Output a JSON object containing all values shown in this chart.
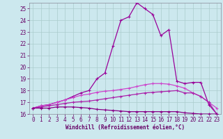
{
  "title": "",
  "xlabel": "Windchill (Refroidissement éolien,°C)",
  "bg_color": "#cce8ee",
  "grid_color": "#aacccc",
  "xlim": [
    -0.5,
    23.5
  ],
  "ylim": [
    16,
    25.5
  ],
  "xticks": [
    0,
    1,
    2,
    3,
    4,
    5,
    6,
    7,
    8,
    9,
    10,
    11,
    12,
    13,
    14,
    15,
    16,
    17,
    18,
    19,
    20,
    21,
    22,
    23
  ],
  "yticks": [
    16,
    17,
    18,
    19,
    20,
    21,
    22,
    23,
    24,
    25
  ],
  "series1_x": [
    0,
    1,
    2,
    3,
    4,
    5,
    6,
    7,
    8,
    9,
    10,
    11,
    12,
    13,
    14,
    15,
    16,
    17,
    18,
    19,
    20,
    21,
    22,
    23
  ],
  "series1_y": [
    16.5,
    16.7,
    16.8,
    17.0,
    17.2,
    17.5,
    17.8,
    18.0,
    19.0,
    19.5,
    21.8,
    24.0,
    24.3,
    25.5,
    25.0,
    24.5,
    22.7,
    23.2,
    18.8,
    18.6,
    18.7,
    18.7,
    16.8,
    16.0
  ],
  "series1_color": "#990099",
  "series2_x": [
    0,
    1,
    2,
    3,
    4,
    5,
    6,
    7,
    8,
    9,
    10,
    11,
    12,
    13,
    14,
    15,
    16,
    17,
    18,
    19,
    20,
    21,
    22,
    23
  ],
  "series2_y": [
    16.5,
    16.7,
    16.8,
    17.0,
    17.2,
    17.4,
    17.6,
    17.7,
    17.85,
    17.95,
    18.0,
    18.1,
    18.2,
    18.35,
    18.5,
    18.6,
    18.6,
    18.55,
    18.4,
    18.2,
    17.8,
    17.5,
    17.0,
    16.5
  ],
  "series2_color": "#cc44cc",
  "series3_x": [
    0,
    1,
    2,
    3,
    4,
    5,
    6,
    7,
    8,
    9,
    10,
    11,
    12,
    13,
    14,
    15,
    16,
    17,
    18,
    19,
    20,
    21,
    22,
    23
  ],
  "series3_y": [
    16.5,
    16.6,
    16.7,
    16.8,
    16.9,
    17.0,
    17.05,
    17.1,
    17.2,
    17.3,
    17.4,
    17.5,
    17.6,
    17.7,
    17.8,
    17.85,
    17.9,
    17.95,
    18.0,
    17.8,
    17.8,
    17.5,
    17.0,
    16.0
  ],
  "series3_color": "#aa22aa",
  "series4_x": [
    0,
    1,
    2,
    3,
    4,
    5,
    6,
    7,
    8,
    9,
    10,
    11,
    12,
    13,
    14,
    15,
    16,
    17,
    18,
    19,
    20,
    21,
    22,
    23
  ],
  "series4_y": [
    16.5,
    16.5,
    16.5,
    16.6,
    16.6,
    16.6,
    16.55,
    16.5,
    16.4,
    16.35,
    16.3,
    16.25,
    16.2,
    16.2,
    16.2,
    16.2,
    16.2,
    16.2,
    16.2,
    16.1,
    16.05,
    16.0,
    16.0,
    16.0
  ],
  "series4_color": "#880088",
  "tick_color": "#660066",
  "label_color": "#660066",
  "spine_color": "#888899",
  "tick_fontsize": 5.5,
  "xlabel_fontsize": 5.5,
  "linewidth": 0.9,
  "markersize": 2.5
}
